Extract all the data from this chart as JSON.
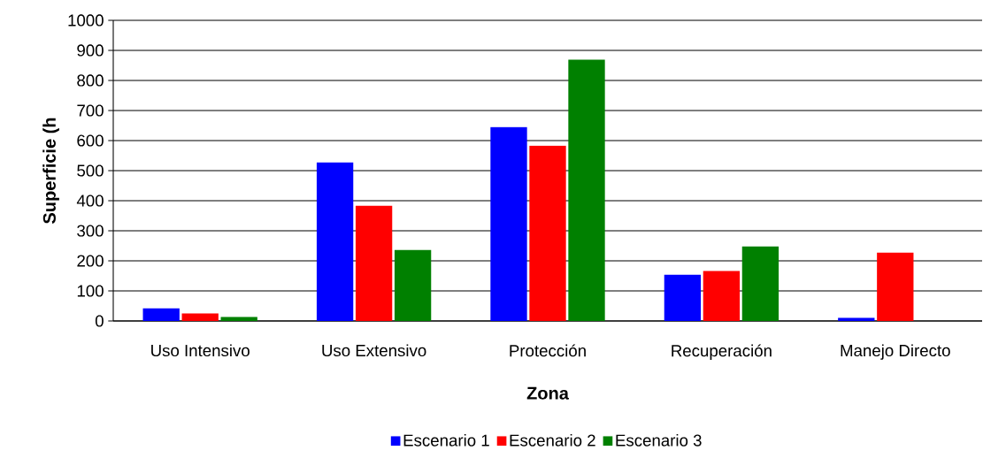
{
  "chart_data": {
    "type": "bar",
    "xlabel": "Zona",
    "ylabel": "Superficie (h",
    "categories": [
      "Uso Intensivo",
      "Uso Extensivo",
      "Protección",
      "Recuperación",
      "Manejo Directo"
    ],
    "series": [
      {
        "name": "Escenario 1",
        "color": "#0000ff",
        "values": [
          42,
          527,
          645,
          154,
          10
        ]
      },
      {
        "name": "Escenario 2",
        "color": "#ff0000",
        "values": [
          25,
          383,
          583,
          166,
          227
        ]
      },
      {
        "name": "Escenario 3",
        "color": "#008000",
        "values": [
          13,
          236,
          869,
          248,
          0
        ]
      }
    ],
    "ylim": [
      0,
      1000
    ],
    "yticks": [
      0,
      100,
      200,
      300,
      400,
      500,
      600,
      700,
      800,
      900,
      1000
    ],
    "grid": "y",
    "legend": "bottom"
  }
}
